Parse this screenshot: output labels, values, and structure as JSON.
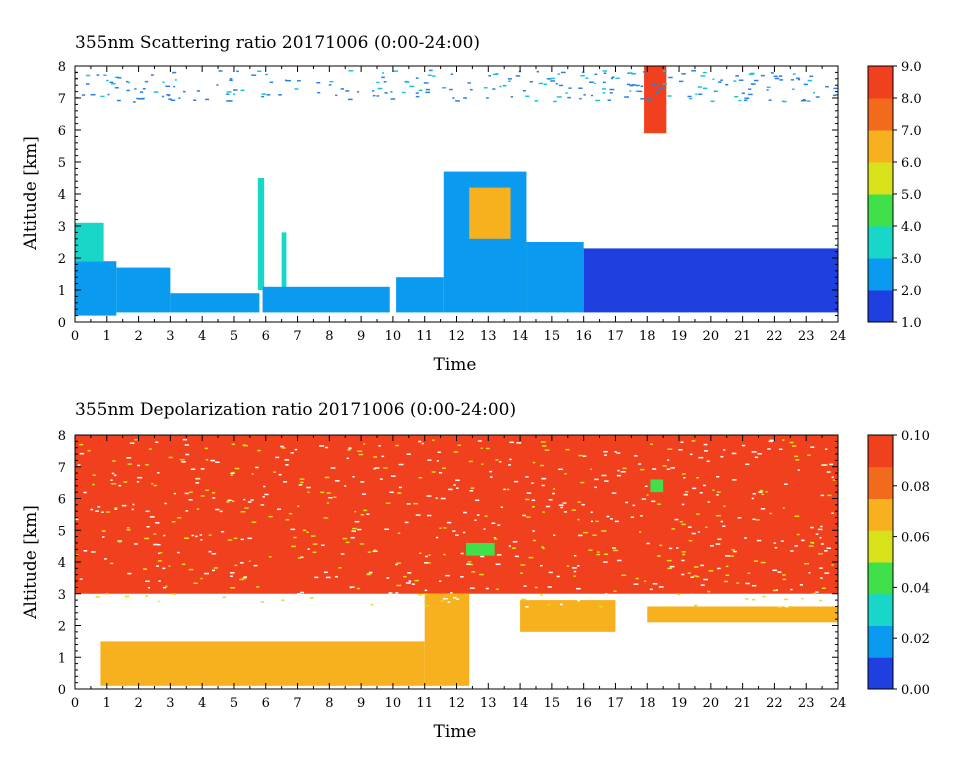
{
  "chart_data": [
    {
      "type": "heatmap",
      "title": "355nm Scattering ratio  20171006 (0:00-24:00)",
      "xlabel": "Time",
      "ylabel": "Altitude [km]",
      "xlim": [
        0,
        24
      ],
      "ylim": [
        0,
        8
      ],
      "x_ticks": [
        "0",
        "1",
        "2",
        "3",
        "4",
        "5",
        "6",
        "7",
        "8",
        "9",
        "10",
        "11",
        "12",
        "13",
        "14",
        "15",
        "16",
        "17",
        "18",
        "19",
        "20",
        "21",
        "22",
        "23",
        "24"
      ],
      "y_ticks": [
        "0",
        "1",
        "2",
        "3",
        "4",
        "5",
        "6",
        "7",
        "8"
      ],
      "colorbar": {
        "range": [
          1.0,
          9.0
        ],
        "ticks": [
          "1.0",
          "2.0",
          "3.0",
          "4.0",
          "5.0",
          "6.0",
          "7.0",
          "8.0",
          "9.0"
        ],
        "colors": [
          "#1f3fe0",
          "#0a9bf0",
          "#18d6c8",
          "#3fe04a",
          "#d8e21a",
          "#f7b01e",
          "#f26a1c",
          "#f0401e"
        ]
      },
      "layers": [
        {
          "t0": 0.0,
          "t1": 1.3,
          "bottom": 0.2,
          "top": 1.9,
          "value": 2.6
        },
        {
          "t0": 0.0,
          "t1": 0.9,
          "bottom": 1.9,
          "top": 3.1,
          "value": 3.4
        },
        {
          "t0": 1.3,
          "t1": 3.0,
          "bottom": 0.3,
          "top": 1.7,
          "value": 2.6
        },
        {
          "t0": 3.0,
          "t1": 5.8,
          "bottom": 0.3,
          "top": 0.9,
          "value": 2.6
        },
        {
          "t0": 5.75,
          "t1": 5.95,
          "bottom": 1.0,
          "top": 4.5,
          "value": 3.4
        },
        {
          "t0": 6.5,
          "t1": 6.65,
          "bottom": 0.8,
          "top": 2.8,
          "value": 3.2
        },
        {
          "t0": 5.9,
          "t1": 9.9,
          "bottom": 0.3,
          "top": 1.1,
          "value": 2.6
        },
        {
          "t0": 10.1,
          "t1": 11.6,
          "bottom": 0.3,
          "top": 1.4,
          "value": 2.4
        },
        {
          "t0": 11.6,
          "t1": 14.2,
          "bottom": 0.3,
          "top": 4.7,
          "value": 2.6
        },
        {
          "t0": 12.4,
          "t1": 13.7,
          "bottom": 2.6,
          "top": 4.2,
          "value": 6.5
        },
        {
          "t0": 14.2,
          "t1": 16.0,
          "bottom": 0.3,
          "top": 2.5,
          "value": 2.0
        },
        {
          "t0": 16.0,
          "t1": 24.0,
          "bottom": 0.3,
          "top": 2.3,
          "value": 1.6
        },
        {
          "t0": 17.9,
          "t1": 18.6,
          "bottom": 5.9,
          "top": 8.0,
          "value": 8.5
        }
      ]
    },
    {
      "type": "heatmap",
      "title": "355nm Depolarization ratio  20171006 (0:00-24:00)",
      "xlabel": "Time",
      "ylabel": "Altitude [km]",
      "xlim": [
        0,
        24
      ],
      "ylim": [
        0,
        8
      ],
      "x_ticks": [
        "0",
        "1",
        "2",
        "3",
        "4",
        "5",
        "6",
        "7",
        "8",
        "9",
        "10",
        "11",
        "12",
        "13",
        "14",
        "15",
        "16",
        "17",
        "18",
        "19",
        "20",
        "21",
        "22",
        "23",
        "24"
      ],
      "y_ticks": [
        "0",
        "1",
        "2",
        "3",
        "4",
        "5",
        "6",
        "7",
        "8"
      ],
      "colorbar": {
        "range": [
          0.0,
          0.1
        ],
        "ticks": [
          "0.00",
          "0.02",
          "0.04",
          "0.06",
          "0.08",
          "0.10"
        ],
        "colors": [
          "#1f3fe0",
          "#0a9bf0",
          "#18d6c8",
          "#3fe04a",
          "#d8e21a",
          "#f7b01e",
          "#f26a1c",
          "#f0401e"
        ]
      },
      "layers": [
        {
          "t0": 0.0,
          "t1": 24.0,
          "bottom": 3.0,
          "top": 8.0,
          "value": 0.09
        },
        {
          "t0": 0.8,
          "t1": 11.0,
          "bottom": 0.1,
          "top": 1.5,
          "value": 0.07
        },
        {
          "t0": 11.0,
          "t1": 12.4,
          "bottom": 0.1,
          "top": 3.0,
          "value": 0.075
        },
        {
          "t0": 12.3,
          "t1": 13.2,
          "bottom": 4.2,
          "top": 4.6,
          "value": 0.04
        },
        {
          "t0": 14.0,
          "t1": 17.0,
          "bottom": 1.8,
          "top": 2.8,
          "value": 0.07
        },
        {
          "t0": 18.0,
          "t1": 24.0,
          "bottom": 2.1,
          "top": 2.6,
          "value": 0.065
        },
        {
          "t0": 18.1,
          "t1": 18.5,
          "bottom": 6.2,
          "top": 6.6,
          "value": 0.04
        }
      ]
    }
  ]
}
